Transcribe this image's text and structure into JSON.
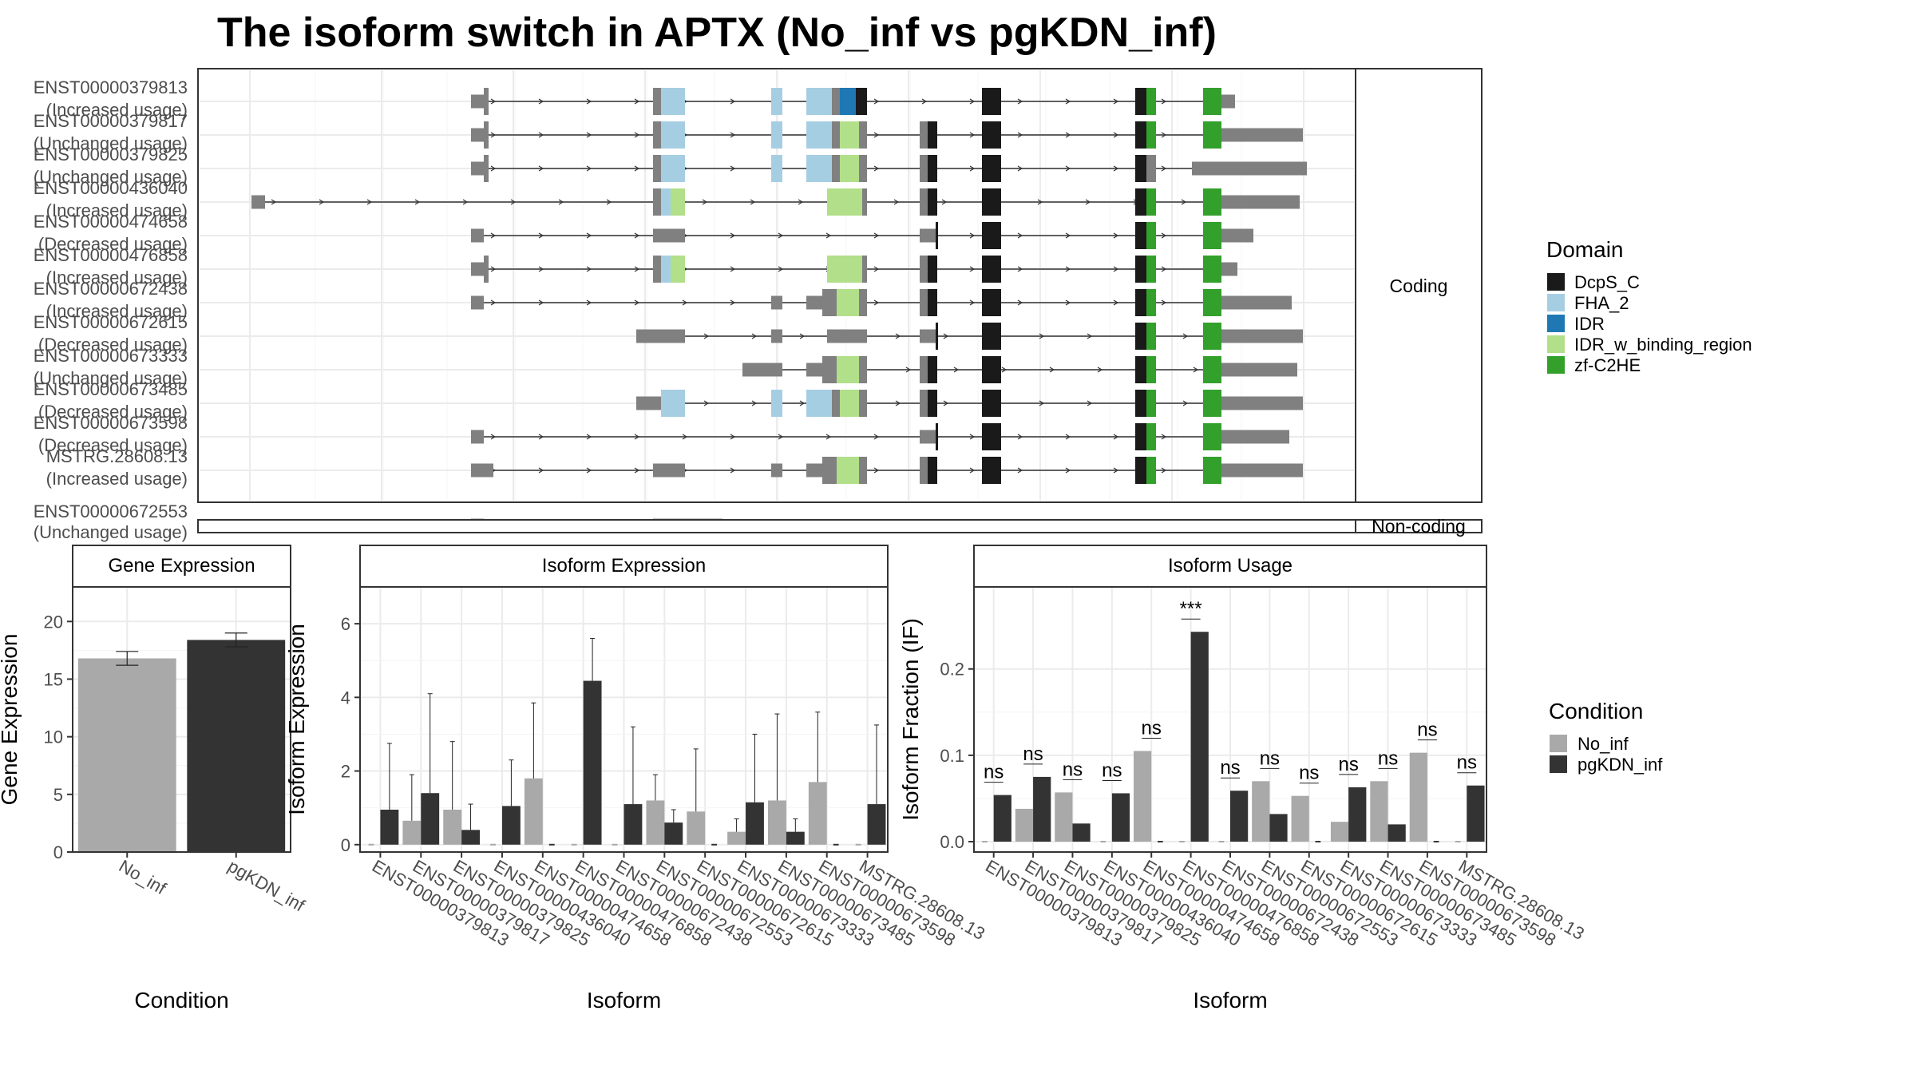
{
  "title": "The isoform switch in APTX (No_inf vs pgKDN_inf)",
  "colors": {
    "DcpS_C": "#1a1a1a",
    "FHA_2": "#a6cee3",
    "IDR": "#1f78b4",
    "IDR_w_binding_region": "#b2df8a",
    "zf-C2HE": "#33a02c",
    "gene_body": "#808080",
    "No_inf": "#a9a9a9",
    "pgKDN_inf": "#333333"
  },
  "domain_legend": {
    "title": "Domain",
    "items": [
      "DcpS_C",
      "FHA_2",
      "IDR",
      "IDR_w_binding_region",
      "zf-C2HE"
    ]
  },
  "condition_legend": {
    "title": "Condition",
    "items": [
      "No_inf",
      "pgKDN_inf"
    ]
  },
  "structure": {
    "coding_label": "Coding",
    "noncoding_label": "Non-coding",
    "coding": [
      {
        "id": "ENST00000379813",
        "usage": "(Increased usage)"
      },
      {
        "id": "ENST00000379817",
        "usage": "(Unchanged usage)"
      },
      {
        "id": "ENST00000379825",
        "usage": "(Unchanged usage)"
      },
      {
        "id": "ENST00000436040",
        "usage": "(Increased usage)"
      },
      {
        "id": "ENST00000474658",
        "usage": "(Decreased usage)"
      },
      {
        "id": "ENST00000476858",
        "usage": "(Increased usage)"
      },
      {
        "id": "ENST00000672438",
        "usage": "(Increased usage)"
      },
      {
        "id": "ENST00000672615",
        "usage": "(Decreased usage)"
      },
      {
        "id": "ENST00000673333",
        "usage": "(Unchanged usage)"
      },
      {
        "id": "ENST00000673485",
        "usage": "(Decreased usage)"
      },
      {
        "id": "ENST00000673598",
        "usage": "(Decreased usage)"
      },
      {
        "id": "MSTRG.28608.13",
        "usage": "(Increased usage)"
      }
    ],
    "noncoding": [
      {
        "id": "ENST00000672553",
        "usage": "(Unchanged usage)"
      }
    ]
  },
  "chart_data": [
    {
      "type": "bar",
      "title": "Gene Expression",
      "xlabel": "Condition",
      "ylabel": "Gene Expression",
      "categories": [
        "No_inf",
        "pgKDN_inf"
      ],
      "values": [
        16.8,
        18.4
      ],
      "err_low": [
        16.2,
        17.8
      ],
      "err_high": [
        17.4,
        19.0
      ],
      "ylim": [
        0,
        23
      ],
      "yticks": [
        0,
        5,
        10,
        15,
        20
      ]
    },
    {
      "type": "bar",
      "title": "Isoform Expression",
      "xlabel": "Isoform",
      "ylabel": "Isoform Expression",
      "categories": [
        "ENST00000379813",
        "ENST00000379817",
        "ENST00000379825",
        "ENST00000436040",
        "ENST00000474658",
        "ENST00000476858",
        "ENST00000672438",
        "ENST00000672553",
        "ENST00000672615",
        "ENST00000673333",
        "ENST00000673485",
        "ENST00000673598",
        "MSTRG.28608.13"
      ],
      "series": [
        {
          "name": "No_inf",
          "values": [
            0,
            0.65,
            0.95,
            0,
            1.8,
            0,
            0,
            1.2,
            0.9,
            0.35,
            1.2,
            1.7,
            0
          ],
          "err_high": [
            0,
            1.9,
            2.8,
            0,
            3.85,
            0,
            0,
            1.9,
            2.6,
            0.7,
            3.55,
            3.6,
            0
          ]
        },
        {
          "name": "pgKDN_inf",
          "values": [
            0.95,
            1.4,
            0.4,
            1.05,
            0,
            4.45,
            1.1,
            0.6,
            0,
            1.15,
            0.35,
            0,
            1.1
          ],
          "err_high": [
            2.75,
            4.1,
            1.1,
            2.3,
            0,
            5.6,
            3.2,
            0.95,
            0,
            3.0,
            0.7,
            0,
            3.25
          ]
        }
      ],
      "ylim": [
        -0.2,
        7.0
      ],
      "yticks": [
        0,
        2,
        4,
        6
      ]
    },
    {
      "type": "bar",
      "title": "Isoform Usage",
      "xlabel": "Isoform",
      "ylabel": "Isoform Fraction (IF)",
      "categories": [
        "ENST00000379813",
        "ENST00000379817",
        "ENST00000379825",
        "ENST00000436040",
        "ENST00000474658",
        "ENST00000476858",
        "ENST00000672438",
        "ENST00000672553",
        "ENST00000672615",
        "ENST00000673333",
        "ENST00000673485",
        "ENST00000673598",
        "MSTRG.28608.13"
      ],
      "series": [
        {
          "name": "No_inf",
          "values": [
            0,
            0.038,
            0.057,
            0,
            0.105,
            0,
            0,
            0.07,
            0.053,
            0.023,
            0.07,
            0.103,
            0
          ]
        },
        {
          "name": "pgKDN_inf",
          "values": [
            0.054,
            0.075,
            0.021,
            0.056,
            0,
            0.243,
            0.059,
            0.032,
            0,
            0.063,
            0.02,
            0,
            0.065
          ]
        }
      ],
      "significance": [
        "ns",
        "ns",
        "ns",
        "ns",
        "ns",
        "***",
        "ns",
        "ns",
        "ns",
        "ns",
        "ns",
        "ns",
        "ns"
      ],
      "ylim": [
        -0.012,
        0.295
      ],
      "yticks": [
        0.0,
        0.1,
        0.2
      ],
      "ytick_labels": [
        "0.0",
        "0.1",
        "0.2"
      ]
    }
  ]
}
